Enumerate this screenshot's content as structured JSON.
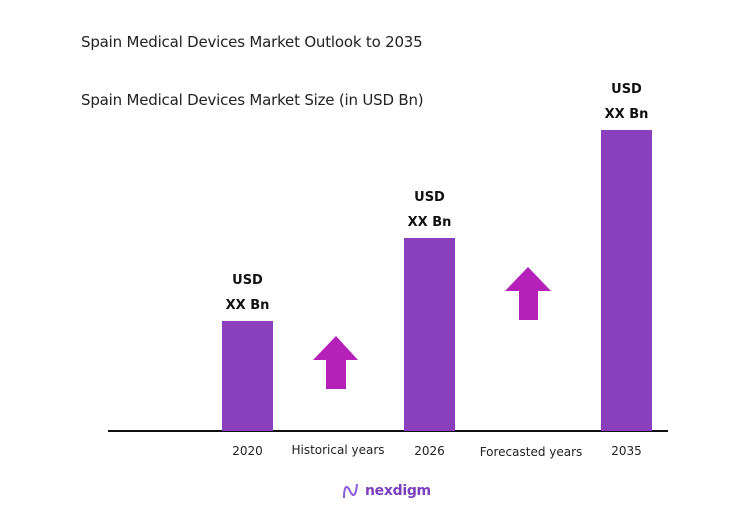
{
  "header": {
    "title": "Spain Medical Devices Market Outlook to 2035",
    "subtitle": "Spain Medical Devices Market Size (in USD Bn)"
  },
  "chart_data": {
    "type": "bar",
    "title": "Spain Medical Devices Market Size (in USD Bn)",
    "categories": [
      "2020",
      "2026",
      "2035"
    ],
    "values": [
      null,
      null,
      null
    ],
    "data_labels": [
      [
        "USD",
        "XX Bn"
      ],
      [
        "USD",
        "XX Bn"
      ],
      [
        "USD",
        "XX Bn"
      ]
    ],
    "period_labels": [
      "Historical years",
      "Forecasted years"
    ],
    "grid": false,
    "colors": {
      "bar": "#8a40bc",
      "arrow": "#b520b9",
      "axis": "#111111"
    }
  },
  "logo": {
    "text": "nexdigm"
  }
}
